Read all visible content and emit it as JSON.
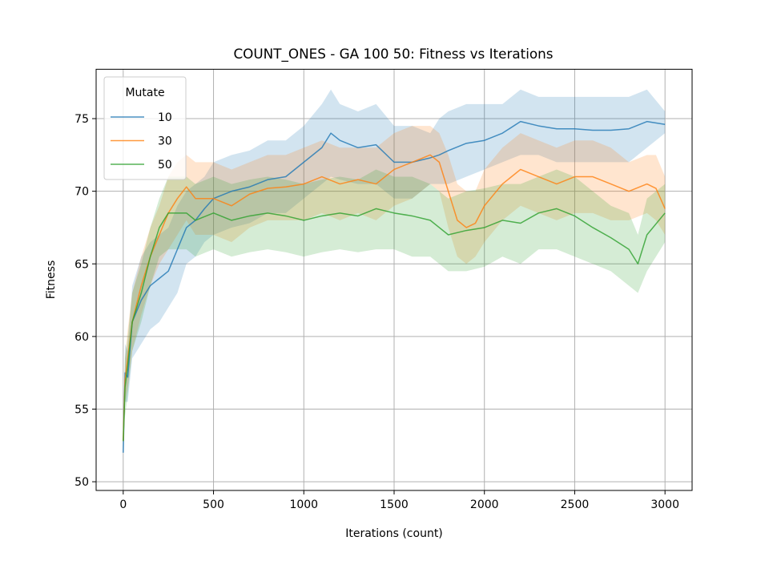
{
  "chart_data": {
    "type": "line",
    "title": "COUNT_ONES - GA 100 50: Fitness vs Iterations",
    "xlabel": "Iterations (count)",
    "ylabel": "Fitness",
    "xlim": [
      -150,
      3150
    ],
    "ylim": [
      49.4,
      78.4
    ],
    "xticks": [
      0,
      500,
      1000,
      1500,
      2000,
      2500,
      3000
    ],
    "yticks": [
      50,
      55,
      60,
      65,
      70,
      75
    ],
    "grid": true,
    "legend": {
      "title": "Mutate",
      "placement": "top-left"
    },
    "series": [
      {
        "name": "10",
        "color": "#1f77b4",
        "x": [
          0,
          10,
          25,
          50,
          100,
          150,
          200,
          250,
          300,
          350,
          400,
          450,
          500,
          600,
          700,
          800,
          900,
          1000,
          1100,
          1150,
          1200,
          1300,
          1400,
          1500,
          1600,
          1700,
          1750,
          1800,
          1900,
          2000,
          2100,
          2200,
          2300,
          2400,
          2500,
          2600,
          2700,
          2800,
          2900,
          3000
        ],
        "y": [
          52.0,
          57.5,
          57.2,
          61.0,
          62.5,
          63.5,
          64.0,
          64.5,
          66.0,
          67.5,
          68.0,
          68.8,
          69.5,
          70.0,
          70.3,
          70.8,
          71.0,
          72.0,
          73.0,
          74.0,
          73.5,
          73.0,
          73.2,
          72.0,
          72.0,
          72.3,
          72.5,
          72.8,
          73.3,
          73.5,
          74.0,
          74.8,
          74.5,
          74.3,
          74.3,
          74.2,
          74.2,
          74.3,
          74.8,
          74.6
        ],
        "lower": [
          52.0,
          55.5,
          55.5,
          58.5,
          59.5,
          60.5,
          61.0,
          62.0,
          63.0,
          65.0,
          65.5,
          66.5,
          67.0,
          67.5,
          67.8,
          68.5,
          68.5,
          69.5,
          70.5,
          71.0,
          70.8,
          70.5,
          70.5,
          69.5,
          69.5,
          70.5,
          70.5,
          70.5,
          71.0,
          71.5,
          72.0,
          72.5,
          72.5,
          72.0,
          72.0,
          72.0,
          72.0,
          72.0,
          73.0,
          74.0
        ],
        "upper": [
          52.0,
          59.5,
          59.0,
          63.5,
          65.5,
          66.5,
          67.0,
          67.5,
          69.0,
          70.0,
          70.5,
          71.0,
          72.0,
          72.5,
          72.8,
          73.5,
          73.5,
          74.5,
          76.0,
          77.0,
          76.0,
          75.5,
          76.0,
          74.5,
          74.5,
          74.0,
          75.0,
          75.5,
          76.0,
          76.0,
          76.0,
          77.0,
          76.5,
          76.5,
          76.5,
          76.5,
          76.5,
          76.5,
          77.0,
          75.5
        ]
      },
      {
        "name": "30",
        "color": "#ff7f0e",
        "x": [
          0,
          10,
          25,
          50,
          100,
          150,
          200,
          250,
          300,
          350,
          400,
          500,
          600,
          700,
          800,
          900,
          1000,
          1100,
          1200,
          1300,
          1400,
          1500,
          1600,
          1700,
          1750,
          1800,
          1850,
          1900,
          1950,
          2000,
          2100,
          2200,
          2300,
          2400,
          2500,
          2600,
          2700,
          2800,
          2900,
          2950,
          3000
        ],
        "y": [
          52.8,
          57.0,
          58.5,
          61.0,
          63.5,
          65.5,
          67.0,
          68.5,
          69.5,
          70.3,
          69.5,
          69.5,
          69.0,
          69.8,
          70.2,
          70.3,
          70.5,
          71.0,
          70.5,
          70.8,
          70.5,
          71.5,
          72.0,
          72.5,
          72.0,
          70.0,
          68.0,
          67.5,
          67.8,
          69.0,
          70.5,
          71.5,
          71.0,
          70.5,
          71.0,
          71.0,
          70.5,
          70.0,
          70.5,
          70.2,
          68.8
        ],
        "lower": [
          52.8,
          55.5,
          56.5,
          59.0,
          61.5,
          63.5,
          65.0,
          66.0,
          67.0,
          68.0,
          67.0,
          67.0,
          66.5,
          67.5,
          68.0,
          68.0,
          68.0,
          68.5,
          68.0,
          68.5,
          68.0,
          69.0,
          69.5,
          70.5,
          70.0,
          67.5,
          65.5,
          65.0,
          65.5,
          66.5,
          68.0,
          69.0,
          68.5,
          68.0,
          68.5,
          68.5,
          68.0,
          68.0,
          68.5,
          68.0,
          67.0
        ],
        "upper": [
          52.8,
          58.5,
          60.5,
          63.0,
          65.5,
          67.5,
          69.0,
          71.0,
          72.0,
          72.5,
          72.0,
          72.0,
          71.5,
          72.0,
          72.5,
          72.5,
          73.0,
          73.5,
          73.0,
          73.0,
          73.0,
          74.0,
          74.5,
          74.5,
          74.0,
          72.5,
          70.5,
          70.0,
          70.0,
          71.5,
          73.0,
          74.0,
          73.5,
          73.0,
          73.5,
          73.5,
          73.0,
          72.0,
          72.5,
          72.5,
          71.0
        ]
      },
      {
        "name": "50",
        "color": "#2ca02c",
        "x": [
          0,
          10,
          25,
          50,
          100,
          150,
          200,
          250,
          300,
          350,
          400,
          500,
          600,
          700,
          800,
          900,
          1000,
          1100,
          1200,
          1300,
          1400,
          1500,
          1600,
          1700,
          1750,
          1800,
          1900,
          2000,
          2100,
          2200,
          2300,
          2400,
          2500,
          2600,
          2700,
          2800,
          2850,
          2900,
          3000
        ],
        "y": [
          52.8,
          56.5,
          58.0,
          61.0,
          63.0,
          65.5,
          67.5,
          68.5,
          68.5,
          68.5,
          68.0,
          68.5,
          68.0,
          68.3,
          68.5,
          68.3,
          68.0,
          68.3,
          68.5,
          68.3,
          68.8,
          68.5,
          68.3,
          68.0,
          67.5,
          67.0,
          67.3,
          67.5,
          68.0,
          67.8,
          68.5,
          68.8,
          68.3,
          67.5,
          66.8,
          66.0,
          65.0,
          67.0,
          68.5
        ],
        "lower": [
          52.8,
          54.5,
          56.0,
          59.0,
          61.0,
          63.5,
          65.5,
          66.0,
          66.0,
          66.0,
          65.5,
          66.0,
          65.5,
          65.8,
          66.0,
          65.8,
          65.5,
          65.8,
          66.0,
          65.8,
          66.0,
          66.0,
          65.5,
          65.5,
          65.0,
          64.5,
          64.5,
          64.8,
          65.5,
          65.0,
          66.0,
          66.0,
          65.5,
          65.0,
          64.5,
          63.5,
          63.0,
          64.5,
          66.5
        ],
        "upper": [
          52.8,
          58.5,
          60.0,
          63.0,
          65.0,
          67.5,
          69.5,
          71.0,
          71.0,
          71.0,
          70.5,
          71.0,
          70.5,
          70.8,
          71.0,
          70.8,
          70.5,
          70.8,
          71.0,
          70.8,
          71.5,
          71.0,
          71.0,
          70.5,
          70.0,
          69.5,
          70.0,
          70.2,
          70.5,
          70.5,
          71.0,
          71.5,
          71.0,
          70.0,
          69.0,
          68.5,
          67.0,
          69.5,
          70.5
        ]
      }
    ]
  }
}
